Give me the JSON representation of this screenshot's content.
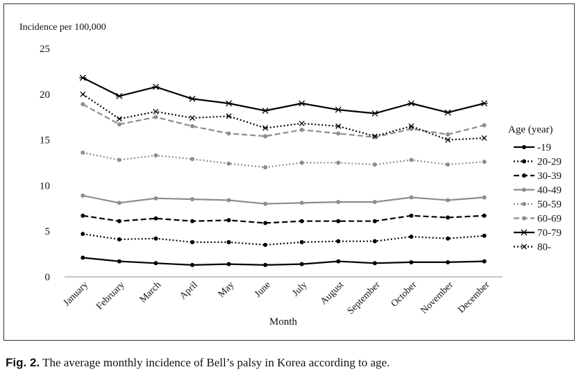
{
  "chart_data": {
    "type": "line",
    "title": "",
    "ylabel": "Incidence per 100,000",
    "xlabel": "Month",
    "ylim": [
      0,
      25
    ],
    "yticks": [
      0,
      5,
      10,
      15,
      20,
      25
    ],
    "grid": false,
    "legend_title": "Age (year)",
    "legend_position": "right",
    "categories": [
      "January",
      "February",
      "March",
      "April",
      "May",
      "June",
      "July",
      "August",
      "September",
      "October",
      "November",
      "December"
    ],
    "series": [
      {
        "name": "-19",
        "color": "#000000",
        "dash": "solid",
        "marker": "circle",
        "values": [
          2.1,
          1.7,
          1.5,
          1.3,
          1.4,
          1.3,
          1.4,
          1.7,
          1.5,
          1.6,
          1.6,
          1.7
        ]
      },
      {
        "name": "20-29",
        "color": "#000000",
        "dash": "dot",
        "marker": "circle",
        "values": [
          4.7,
          4.1,
          4.2,
          3.8,
          3.8,
          3.5,
          3.8,
          3.9,
          3.9,
          4.4,
          4.2,
          4.5
        ]
      },
      {
        "name": "30-39",
        "color": "#000000",
        "dash": "dash",
        "marker": "circle",
        "values": [
          6.7,
          6.1,
          6.4,
          6.1,
          6.2,
          5.9,
          6.1,
          6.1,
          6.1,
          6.7,
          6.5,
          6.7
        ]
      },
      {
        "name": "40-49",
        "color": "#8c8c8c",
        "dash": "solid",
        "marker": "circle",
        "values": [
          8.9,
          8.1,
          8.6,
          8.5,
          8.4,
          8.0,
          8.1,
          8.2,
          8.2,
          8.7,
          8.4,
          8.7
        ]
      },
      {
        "name": "50-59",
        "color": "#8c8c8c",
        "dash": "dot",
        "marker": "circle",
        "values": [
          13.6,
          12.8,
          13.3,
          12.9,
          12.4,
          12.0,
          12.5,
          12.5,
          12.3,
          12.8,
          12.3,
          12.6
        ]
      },
      {
        "name": "60-69",
        "color": "#8c8c8c",
        "dash": "dash",
        "marker": "circle",
        "values": [
          18.9,
          16.7,
          17.5,
          16.5,
          15.7,
          15.4,
          16.1,
          15.7,
          15.3,
          16.2,
          15.6,
          16.6
        ]
      },
      {
        "name": "70-79",
        "color": "#000000",
        "dash": "solid",
        "marker": "star",
        "values": [
          21.8,
          19.8,
          20.8,
          19.5,
          19.0,
          18.2,
          19.0,
          18.3,
          17.9,
          19.0,
          18.0,
          19.0
        ]
      },
      {
        "name": "80-",
        "color": "#000000",
        "dash": "dot",
        "marker": "x",
        "values": [
          20.0,
          17.3,
          18.1,
          17.4,
          17.6,
          16.3,
          16.8,
          16.5,
          15.4,
          16.5,
          15.0,
          15.2
        ]
      }
    ]
  },
  "caption": {
    "label": "Fig. 2.",
    "text": " The average monthly incidence of Bell’s palsy in Korea according to age."
  }
}
